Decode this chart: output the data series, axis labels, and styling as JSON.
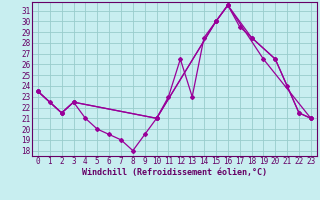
{
  "xlabel": "Windchill (Refroidissement éolien,°C)",
  "bg_color": "#c8eef0",
  "grid_color": "#99cccc",
  "line_color": "#990099",
  "spine_color": "#660066",
  "xlim": [
    -0.5,
    23.5
  ],
  "ylim": [
    17.5,
    31.8
  ],
  "xticks": [
    0,
    1,
    2,
    3,
    4,
    5,
    6,
    7,
    8,
    9,
    10,
    11,
    12,
    13,
    14,
    15,
    16,
    17,
    18,
    19,
    20,
    21,
    22,
    23
  ],
  "yticks": [
    18,
    19,
    20,
    21,
    22,
    23,
    24,
    25,
    26,
    27,
    28,
    29,
    30,
    31
  ],
  "series1_x": [
    0,
    1,
    2,
    3,
    4,
    5,
    6,
    7,
    8,
    9,
    10,
    11,
    12,
    13,
    14,
    15,
    16,
    17,
    18,
    20,
    21,
    22,
    23
  ],
  "series1_y": [
    23.5,
    22.5,
    21.5,
    22.5,
    21.0,
    20.0,
    19.5,
    19.0,
    18.0,
    19.5,
    21.0,
    23.0,
    26.5,
    23.0,
    28.5,
    30.0,
    31.5,
    29.5,
    28.5,
    26.5,
    24.0,
    21.5,
    21.0
  ],
  "series2_x": [
    0,
    2,
    3,
    10,
    15,
    16,
    19,
    23
  ],
  "series2_y": [
    23.5,
    21.5,
    22.5,
    21.0,
    30.0,
    31.5,
    26.5,
    21.0
  ],
  "series3_x": [
    0,
    2,
    3,
    10,
    15,
    16,
    18,
    20,
    22,
    23
  ],
  "series3_y": [
    23.5,
    21.5,
    22.5,
    21.0,
    30.0,
    31.5,
    28.5,
    26.5,
    21.5,
    21.0
  ],
  "tick_fontsize": 5.5,
  "xlabel_fontsize": 6.0
}
